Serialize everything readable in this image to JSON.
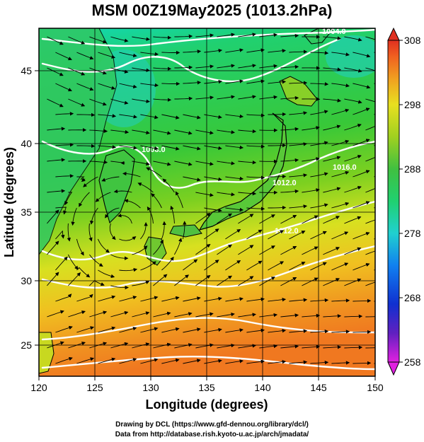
{
  "title": "MSM 00Z19May2025 (1013.2hPa)",
  "map": {
    "region": "Japan and surrounding seas",
    "lon_range": [
      120,
      150
    ],
    "lat_range": [
      22.4,
      47.6
    ],
    "field": "temperature (shaded) with wind streamlines and white pressure contours",
    "contour_labels": [
      "1004.0",
      "1008.0",
      "1012.0",
      "1012.0",
      "1016.0"
    ]
  },
  "axes": {
    "x_label": "Longitude (degrees)",
    "y_label": "Latitude  (degrees)",
    "x_ticks": [
      "120",
      "125",
      "130",
      "135",
      "140",
      "145",
      "150"
    ],
    "y_ticks": [
      "25",
      "30",
      "35",
      "40",
      "45"
    ]
  },
  "colorbar": {
    "ticks": [
      "308",
      "298",
      "288",
      "278",
      "268",
      "258"
    ],
    "min": 258,
    "max": 308,
    "colors": [
      "#e020e0",
      "#6020c0",
      "#1030d0",
      "#1080f0",
      "#20d0d0",
      "#20d070",
      "#40c040",
      "#a0d020",
      "#e8e020",
      "#f0a020",
      "#f06020",
      "#e03020"
    ]
  },
  "credits": {
    "line1": "Drawing by DCL (https://www.gfd-dennou.org/library/dcl/)",
    "line2": "Data from http://database.rish.kyoto-u.ac.jp/arch/jmadata/"
  }
}
